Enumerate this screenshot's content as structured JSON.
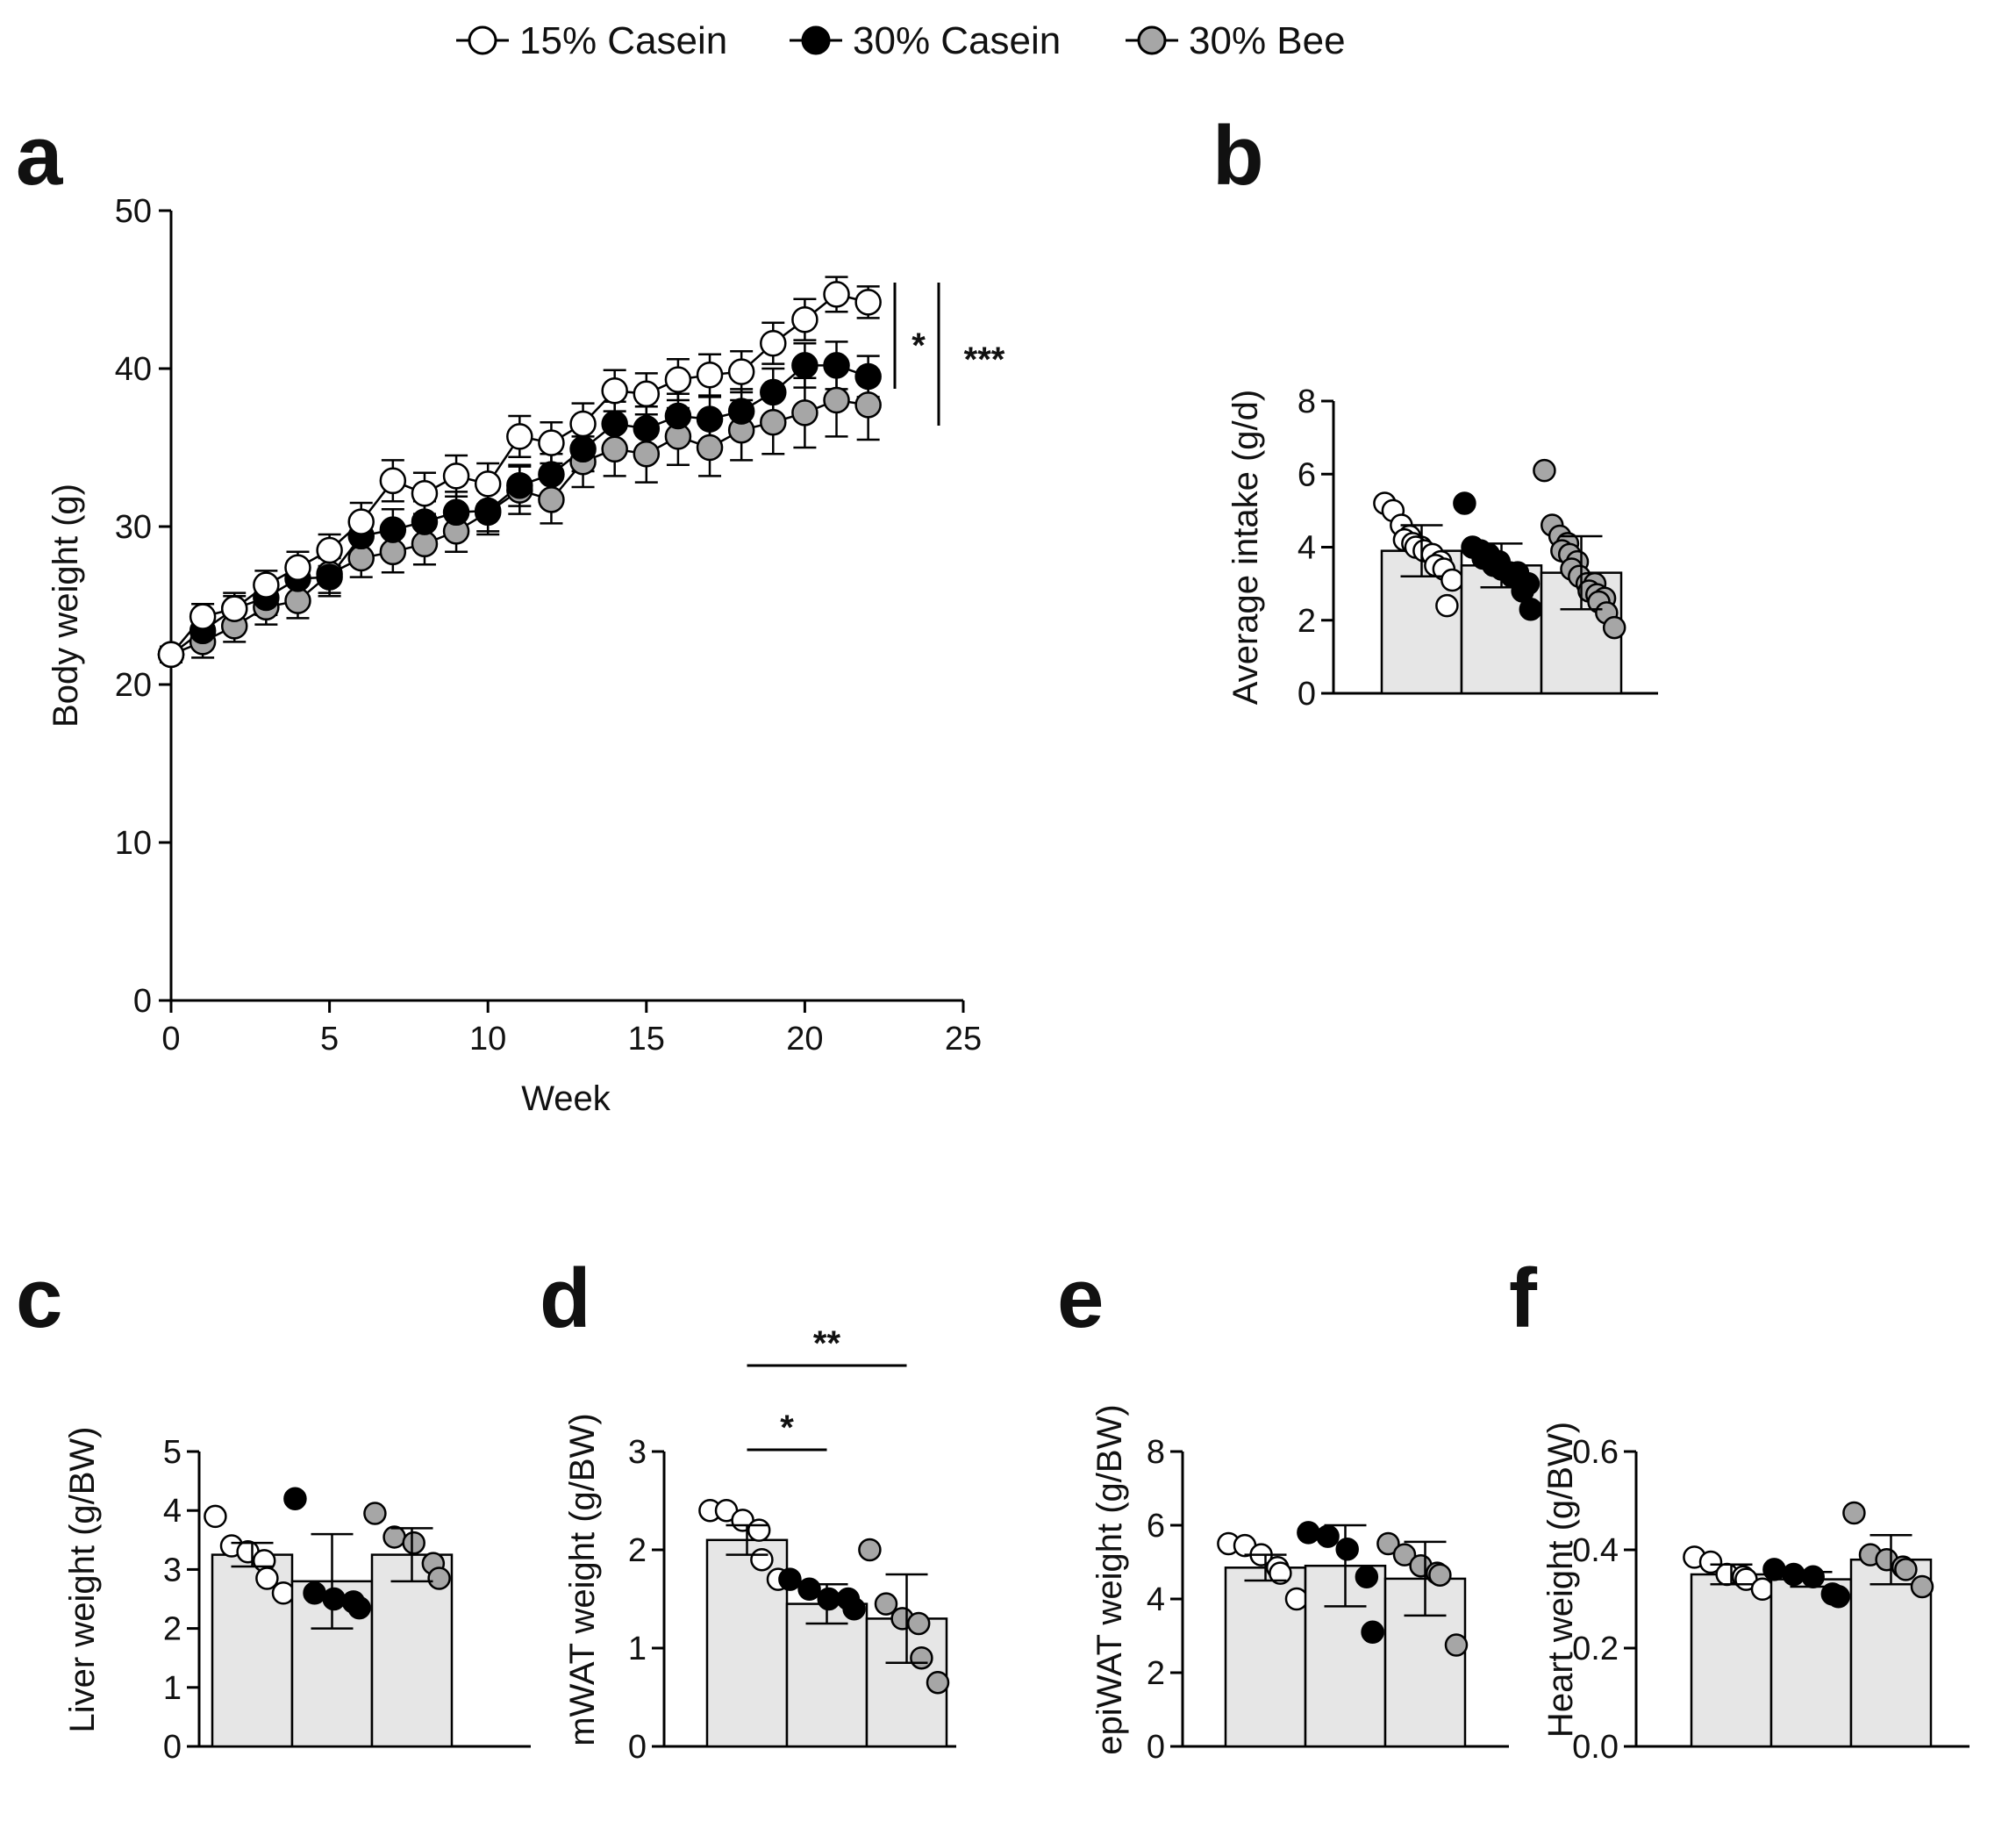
{
  "legend": {
    "items": [
      {
        "label": "15% Casein",
        "color": "#ffffff"
      },
      {
        "label": "30% Casein",
        "color": "#000000"
      },
      {
        "label": "30% Bee",
        "color": "#a6a6a6"
      }
    ]
  },
  "colors": {
    "white": "#ffffff",
    "black": "#000000",
    "grey": "#a6a6a6",
    "bar": "#e6e6e6",
    "axis": "#000000"
  },
  "panels": {
    "a": "a",
    "b": "b",
    "c": "c",
    "d": "d",
    "e": "e",
    "f": "f"
  },
  "chart_data": [
    {
      "id": "a",
      "type": "line",
      "xlabel": "Week",
      "ylabel": "Body weight (g)",
      "xlim": [
        0,
        25
      ],
      "ylim": [
        0,
        50
      ],
      "xticks": [
        "0",
        "5",
        "10",
        "15",
        "20",
        "25"
      ],
      "yticks": [
        "0",
        "10",
        "20",
        "30",
        "40",
        "50"
      ],
      "x": [
        0,
        1,
        2,
        3,
        4,
        5,
        6,
        7,
        8,
        9,
        10,
        11,
        12,
        13,
        14,
        15,
        16,
        17,
        18,
        19,
        20,
        21,
        22
      ],
      "series": [
        {
          "name": "15% Casein",
          "values": [
            21.9,
            24.3,
            24.8,
            26.3,
            27.4,
            28.5,
            30.3,
            32.9,
            32.1,
            33.2,
            32.7,
            35.7,
            35.3,
            36.5,
            38.6,
            38.4,
            39.3,
            39.6,
            39.8,
            41.6,
            43.1,
            44.7,
            44.2
          ],
          "err": [
            0.5,
            0.8,
            0.8,
            0.9,
            1.0,
            1.0,
            1.2,
            1.3,
            1.3,
            1.3,
            1.3,
            1.3,
            1.3,
            1.3,
            1.3,
            1.3,
            1.3,
            1.3,
            1.3,
            1.3,
            1.3,
            1.1,
            1.0
          ]
        },
        {
          "name": "30% Casein",
          "values": [
            21.9,
            23.4,
            24.8,
            25.5,
            26.7,
            26.8,
            29.4,
            29.8,
            30.3,
            30.9,
            31.0,
            32.6,
            33.3,
            34.9,
            36.5,
            36.2,
            37.0,
            36.8,
            37.3,
            38.5,
            40.2,
            40.2,
            39.5
          ],
          "err": [
            0.5,
            1.0,
            1.0,
            1.1,
            1.1,
            1.2,
            1.2,
            1.3,
            1.3,
            1.3,
            1.3,
            1.3,
            1.3,
            1.4,
            1.4,
            1.4,
            1.4,
            1.4,
            1.4,
            1.5,
            1.4,
            1.5,
            1.3
          ]
        },
        {
          "name": "30% Bee",
          "values": [
            21.9,
            22.7,
            23.7,
            24.9,
            25.3,
            27.0,
            28.0,
            28.4,
            28.9,
            29.7,
            30.9,
            32.3,
            31.7,
            34.1,
            34.9,
            34.6,
            35.7,
            35.0,
            36.1,
            36.6,
            37.2,
            38.0,
            37.7
          ],
          "err": [
            0.5,
            1.0,
            1.0,
            1.1,
            1.1,
            1.2,
            1.2,
            1.3,
            1.3,
            1.3,
            1.4,
            1.5,
            1.5,
            1.6,
            1.7,
            1.8,
            1.8,
            1.8,
            1.9,
            2.0,
            2.2,
            2.3,
            2.2
          ]
        }
      ],
      "annotations": [
        {
          "label": "*",
          "compare": "15% Casein vs 30% Casein"
        },
        {
          "label": "***",
          "compare": "15% Casein vs 30% Bee"
        }
      ]
    },
    {
      "id": "b",
      "type": "bar",
      "ylabel": "Average intake (g/d)",
      "ylim": [
        0,
        8
      ],
      "yticks": [
        "0",
        "2",
        "4",
        "6",
        "8"
      ],
      "categories": [
        "15% Casein",
        "30% Casein",
        "30% Bee"
      ],
      "values": [
        3.9,
        3.5,
        3.3
      ],
      "err": [
        0.7,
        0.6,
        1.0
      ],
      "points": [
        [
          5.2,
          5.0,
          4.6,
          4.3,
          4.2,
          4.1,
          4.0,
          4.0,
          3.9,
          3.8,
          3.6,
          3.5,
          3.4,
          3.1,
          2.4
        ],
        [
          5.2,
          4.0,
          3.9,
          3.8,
          3.7,
          3.6,
          3.6,
          3.5,
          3.4,
          3.3,
          3.3,
          3.2,
          3.1,
          3.0,
          2.8,
          2.3
        ],
        [
          6.1,
          4.6,
          4.3,
          4.1,
          3.9,
          3.8,
          3.6,
          3.4,
          3.2,
          3.0,
          3.0,
          2.8,
          2.7,
          2.6,
          2.5,
          2.2,
          1.8
        ]
      ]
    },
    {
      "id": "c",
      "type": "bar",
      "ylabel": "Liver weight (g/BW)",
      "ylim": [
        0,
        5
      ],
      "yticks": [
        "0",
        "1",
        "2",
        "3",
        "4",
        "5"
      ],
      "categories": [
        "15% Casein",
        "30% Casein",
        "30% Bee"
      ],
      "values": [
        3.25,
        2.8,
        3.25
      ],
      "err": [
        0.2,
        0.8,
        0.45
      ],
      "points": [
        [
          3.9,
          3.4,
          3.3,
          3.15,
          2.85,
          2.6
        ],
        [
          4.2,
          2.6,
          2.5,
          2.45,
          2.35
        ],
        [
          3.95,
          3.55,
          3.45,
          3.1,
          2.85
        ]
      ]
    },
    {
      "id": "d",
      "type": "bar",
      "ylabel": "mWAT weight (g/BW)",
      "ylim": [
        0,
        3
      ],
      "yticks": [
        "0",
        "1",
        "2",
        "3"
      ],
      "categories": [
        "15% Casein",
        "30% Casein",
        "30% Bee"
      ],
      "values": [
        2.1,
        1.45,
        1.3
      ],
      "err": [
        0.15,
        0.2,
        0.45
      ],
      "points": [
        [
          2.4,
          2.4,
          2.3,
          2.2,
          1.9,
          1.7
        ],
        [
          1.7,
          1.6,
          1.5,
          1.5,
          1.4
        ],
        [
          2.0,
          1.45,
          1.3,
          1.25,
          0.9,
          0.65
        ]
      ],
      "annotations": [
        {
          "label": "*",
          "compare": "15% Casein vs 30% Casein"
        },
        {
          "label": "**",
          "compare": "15% Casein vs 30% Bee"
        }
      ]
    },
    {
      "id": "e",
      "type": "bar",
      "ylabel": "epiWAT weight (g/BW)",
      "ylim": [
        0,
        8
      ],
      "yticks": [
        "0",
        "2",
        "4",
        "6",
        "8"
      ],
      "categories": [
        "15% Casein",
        "30% Casein",
        "30% Bee"
      ],
      "values": [
        4.85,
        4.9,
        4.55
      ],
      "err": [
        0.35,
        1.1,
        1.0
      ],
      "points": [
        [
          5.5,
          5.45,
          5.2,
          4.85,
          4.7,
          4.0
        ],
        [
          5.8,
          5.7,
          5.35,
          4.6,
          3.1
        ],
        [
          5.5,
          5.2,
          4.9,
          4.7,
          4.65,
          2.75
        ]
      ]
    },
    {
      "id": "f",
      "type": "bar",
      "ylabel": "Heart weight (g/BW)",
      "ylim": [
        0,
        0.6
      ],
      "yticks": [
        "0.0",
        "0.2",
        "0.4",
        "0.6"
      ],
      "categories": [
        "15% Casein",
        "30% Casein",
        "30% Bee"
      ],
      "values": [
        0.35,
        0.34,
        0.38
      ],
      "err": [
        0.02,
        0.015,
        0.05
      ],
      "points": [
        [
          0.385,
          0.375,
          0.35,
          0.345,
          0.34,
          0.32
        ],
        [
          0.36,
          0.35,
          0.345,
          0.31,
          0.305
        ],
        [
          0.475,
          0.39,
          0.38,
          0.365,
          0.36,
          0.325
        ]
      ]
    }
  ]
}
